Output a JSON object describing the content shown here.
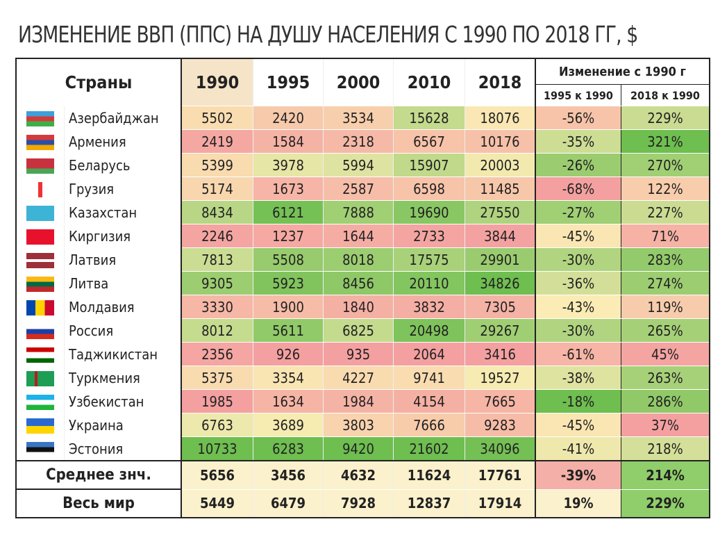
{
  "title": "ИЗМЕНЕНИЕ ВВП (ППС) НА ДУШУ НАСЕЛЕНИЯ С 1990 ПО 2018 ГГ, $",
  "table": {
    "header": {
      "country": "Страны",
      "years": [
        "1990",
        "1995",
        "2000",
        "2010",
        "2018"
      ],
      "change": "Изменение с 1990 г",
      "change_cols": [
        "1995 к 1990",
        "2018 к 1990"
      ]
    },
    "rows": [
      [
        "Азербайджан",
        5502,
        2420,
        3534,
        15628,
        18076,
        "-56%",
        "229%"
      ],
      [
        "Армения",
        2419,
        1584,
        2318,
        6567,
        10176,
        "-35%",
        "321%"
      ],
      [
        "Беларусь",
        5399,
        3978,
        5994,
        15907,
        20003,
        "-26%",
        "270%"
      ],
      [
        "Грузия",
        5174,
        1673,
        2587,
        6598,
        11485,
        "-68%",
        "122%"
      ],
      [
        "Казахстан",
        8434,
        6121,
        7888,
        19690,
        27550,
        "-27%",
        "227%"
      ],
      [
        "Киргизия",
        2246,
        1237,
        1644,
        2733,
        3844,
        "-45%",
        "71%"
      ],
      [
        "Латвия",
        7813,
        5508,
        8018,
        17575,
        29901,
        "-30%",
        "283%"
      ],
      [
        "Литва",
        9305,
        5923,
        8456,
        20110,
        34826,
        "-36%",
        "274%"
      ],
      [
        "Молдавия",
        3330,
        1900,
        1840,
        3832,
        7305,
        "-43%",
        "119%"
      ],
      [
        "Россия",
        8012,
        5611,
        6825,
        20498,
        29267,
        "-30%",
        "265%"
      ],
      [
        "Таджикистан",
        2356,
        926,
        935,
        2064,
        3416,
        "-61%",
        "45%"
      ],
      [
        "Туркмения",
        5375,
        3354,
        4227,
        9741,
        19527,
        "-38%",
        "263%"
      ],
      [
        "Узбекистан",
        1985,
        1634,
        1984,
        4154,
        7665,
        "-18%",
        "286%"
      ],
      [
        "Украина",
        6763,
        3689,
        3803,
        7666,
        9283,
        "-45%",
        "37%"
      ],
      [
        "Эстония",
        10733,
        6283,
        9420,
        21602,
        34096,
        "-41%",
        "218%"
      ]
    ],
    "summary": [
      [
        "Среднее знч.",
        5656,
        3456,
        4632,
        11624,
        17761,
        "-39%",
        "214%"
      ],
      [
        "Весь мир",
        5449,
        6479,
        7928,
        12837,
        17914,
        "19%",
        "229%"
      ]
    ]
  }
}
